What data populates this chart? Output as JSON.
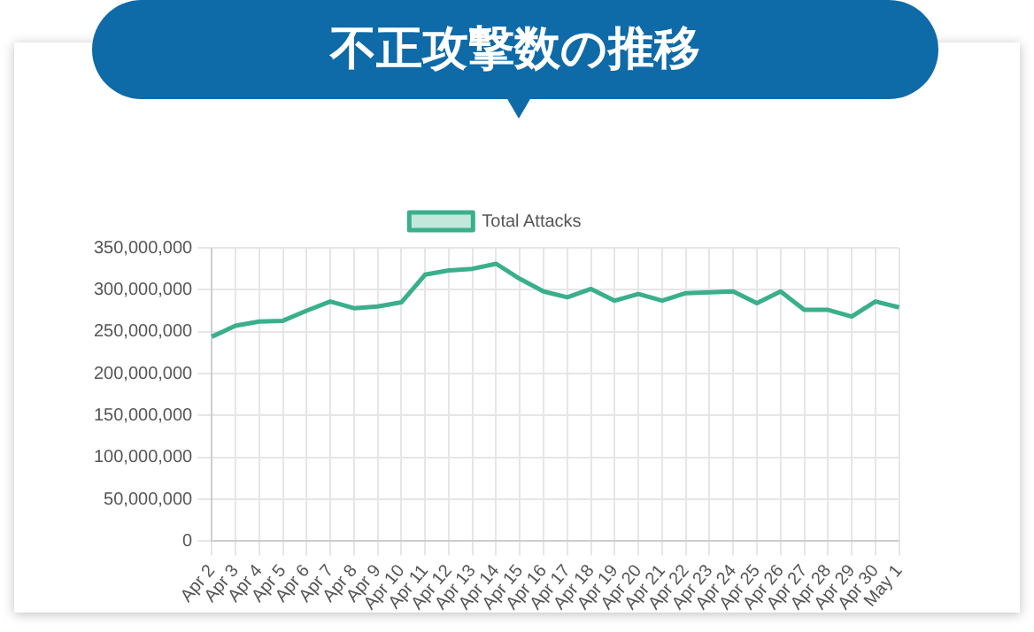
{
  "chart_data": {
    "type": "line",
    "title": "不正攻撃数の推移",
    "categories": [
      "Apr 2",
      "Apr 3",
      "Apr 4",
      "Apr 5",
      "Apr 6",
      "Apr 7",
      "Apr 8",
      "Apr 9",
      "Apr 10",
      "Apr 11",
      "Apr 12",
      "Apr 13",
      "Apr 14",
      "Apr 15",
      "Apr 16",
      "Apr 17",
      "Apr 18",
      "Apr 19",
      "Apr 20",
      "Apr 21",
      "Apr 22",
      "Apr 23",
      "Apr 24",
      "Apr 25",
      "Apr 26",
      "Apr 27",
      "Apr 28",
      "Apr 29",
      "Apr 30",
      "May 1"
    ],
    "series": [
      {
        "name": "Total Attacks",
        "color": "#3aaf8b",
        "values": [
          244000000,
          257000000,
          262000000,
          263000000,
          275000000,
          286000000,
          278000000,
          280000000,
          285000000,
          318000000,
          323000000,
          325000000,
          331000000,
          313000000,
          298000000,
          291000000,
          301000000,
          287000000,
          295000000,
          287000000,
          296000000,
          297000000,
          298000000,
          284000000,
          298000000,
          276000000,
          276000000,
          268000000,
          286000000,
          279000000
        ]
      }
    ],
    "ylim": [
      0,
      350000000
    ],
    "yticks": [
      0,
      {
        "value": 50000000,
        "label": "50,000,000"
      },
      {
        "value": 100000000,
        "label": "100,000,000"
      },
      {
        "value": 150000000,
        "label": "150,000,000"
      },
      {
        "value": 200000000,
        "label": "200,000,000"
      },
      {
        "value": 250000000,
        "label": "250,000,000"
      },
      {
        "value": 300000000,
        "label": "300,000,000"
      },
      {
        "value": 350000000,
        "label": "350,000,000"
      }
    ],
    "grid": true,
    "legend": "top",
    "marker": "none",
    "line_style": "solid"
  }
}
